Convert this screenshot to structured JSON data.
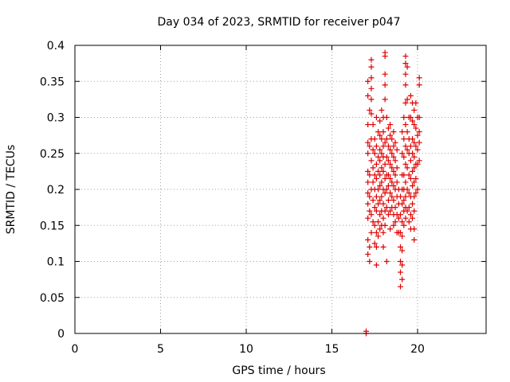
{
  "chart_data": {
    "type": "scatter",
    "title": "Day 034 of 2023, SRMTID for receiver p047",
    "xlabel": "GPS time / hours",
    "ylabel": "SRMTID / TECUs",
    "xlim": [
      0,
      24
    ],
    "ylim": [
      0,
      0.4
    ],
    "x_ticks": [
      0,
      5,
      10,
      15,
      20
    ],
    "x_tick_labels": [
      "0",
      "5",
      "10",
      "15",
      "20"
    ],
    "y_ticks": [
      0,
      0.05,
      0.1,
      0.15,
      0.2,
      0.25,
      0.3,
      0.35,
      0.4
    ],
    "y_tick_labels": [
      "0",
      "0.05",
      "0.1",
      "0.15",
      "0.2",
      "0.25",
      "0.3",
      "0.35",
      "0.4"
    ],
    "grid": true,
    "marker": "+",
    "color": "#e00000",
    "series": [
      {
        "name": "p047",
        "points": [
          [
            17.0,
            0.0
          ],
          [
            17.0,
            0.003
          ],
          [
            17.1,
            0.35
          ],
          [
            17.1,
            0.33
          ],
          [
            17.1,
            0.29
          ],
          [
            17.1,
            0.265
          ],
          [
            17.1,
            0.25
          ],
          [
            17.1,
            0.225
          ],
          [
            17.1,
            0.21
          ],
          [
            17.1,
            0.195
          ],
          [
            17.1,
            0.18
          ],
          [
            17.1,
            0.16
          ],
          [
            17.1,
            0.13
          ],
          [
            17.1,
            0.11
          ],
          [
            17.2,
            0.31
          ],
          [
            17.2,
            0.26
          ],
          [
            17.2,
            0.22
          ],
          [
            17.2,
            0.19
          ],
          [
            17.2,
            0.17
          ],
          [
            17.2,
            0.12
          ],
          [
            17.2,
            0.1
          ],
          [
            17.3,
            0.38
          ],
          [
            17.3,
            0.37
          ],
          [
            17.3,
            0.355
          ],
          [
            17.3,
            0.34
          ],
          [
            17.3,
            0.325
          ],
          [
            17.3,
            0.305
          ],
          [
            17.3,
            0.27
          ],
          [
            17.3,
            0.24
          ],
          [
            17.3,
            0.2
          ],
          [
            17.3,
            0.165
          ],
          [
            17.3,
            0.14
          ],
          [
            17.4,
            0.29
          ],
          [
            17.4,
            0.255
          ],
          [
            17.4,
            0.23
          ],
          [
            17.4,
            0.21
          ],
          [
            17.4,
            0.185
          ],
          [
            17.4,
            0.155
          ],
          [
            17.5,
            0.27
          ],
          [
            17.5,
            0.25
          ],
          [
            17.5,
            0.22
          ],
          [
            17.5,
            0.2
          ],
          [
            17.5,
            0.175
          ],
          [
            17.5,
            0.15
          ],
          [
            17.5,
            0.125
          ],
          [
            17.6,
            0.3
          ],
          [
            17.6,
            0.26
          ],
          [
            17.6,
            0.235
          ],
          [
            17.6,
            0.215
          ],
          [
            17.6,
            0.19
          ],
          [
            17.6,
            0.17
          ],
          [
            17.6,
            0.14
          ],
          [
            17.6,
            0.12
          ],
          [
            17.6,
            0.095
          ],
          [
            17.7,
            0.28
          ],
          [
            17.7,
            0.245
          ],
          [
            17.7,
            0.225
          ],
          [
            17.7,
            0.2
          ],
          [
            17.7,
            0.18
          ],
          [
            17.7,
            0.155
          ],
          [
            17.7,
            0.135
          ],
          [
            17.8,
            0.295
          ],
          [
            17.8,
            0.275
          ],
          [
            17.8,
            0.255
          ],
          [
            17.8,
            0.24
          ],
          [
            17.8,
            0.22
          ],
          [
            17.8,
            0.205
          ],
          [
            17.8,
            0.185
          ],
          [
            17.8,
            0.165
          ],
          [
            17.8,
            0.145
          ],
          [
            17.9,
            0.31
          ],
          [
            17.9,
            0.27
          ],
          [
            17.9,
            0.25
          ],
          [
            17.9,
            0.23
          ],
          [
            17.9,
            0.21
          ],
          [
            17.9,
            0.19
          ],
          [
            17.9,
            0.17
          ],
          [
            17.9,
            0.15
          ],
          [
            18.0,
            0.3
          ],
          [
            18.0,
            0.28
          ],
          [
            18.0,
            0.26
          ],
          [
            18.0,
            0.245
          ],
          [
            18.0,
            0.225
          ],
          [
            18.0,
            0.2
          ],
          [
            18.0,
            0.18
          ],
          [
            18.0,
            0.16
          ],
          [
            18.0,
            0.14
          ],
          [
            18.0,
            0.12
          ],
          [
            18.1,
            0.39
          ],
          [
            18.1,
            0.385
          ],
          [
            18.1,
            0.36
          ],
          [
            18.1,
            0.345
          ],
          [
            18.1,
            0.325
          ],
          [
            18.1,
            0.265
          ],
          [
            18.1,
            0.235
          ],
          [
            18.1,
            0.215
          ],
          [
            18.1,
            0.195
          ],
          [
            18.1,
            0.17
          ],
          [
            18.1,
            0.15
          ],
          [
            18.2,
            0.3
          ],
          [
            18.2,
            0.27
          ],
          [
            18.2,
            0.245
          ],
          [
            18.2,
            0.22
          ],
          [
            18.2,
            0.2
          ],
          [
            18.2,
            0.175
          ],
          [
            18.2,
            0.1
          ],
          [
            18.3,
            0.285
          ],
          [
            18.3,
            0.26
          ],
          [
            18.3,
            0.24
          ],
          [
            18.3,
            0.22
          ],
          [
            18.3,
            0.205
          ],
          [
            18.3,
            0.185
          ],
          [
            18.3,
            0.165
          ],
          [
            18.4,
            0.29
          ],
          [
            18.4,
            0.275
          ],
          [
            18.4,
            0.255
          ],
          [
            18.4,
            0.235
          ],
          [
            18.4,
            0.215
          ],
          [
            18.4,
            0.195
          ],
          [
            18.4,
            0.17
          ],
          [
            18.4,
            0.145
          ],
          [
            18.5,
            0.27
          ],
          [
            18.5,
            0.25
          ],
          [
            18.5,
            0.23
          ],
          [
            18.5,
            0.21
          ],
          [
            18.5,
            0.19
          ],
          [
            18.5,
            0.175
          ],
          [
            18.6,
            0.28
          ],
          [
            18.6,
            0.26
          ],
          [
            18.6,
            0.245
          ],
          [
            18.6,
            0.225
          ],
          [
            18.6,
            0.205
          ],
          [
            18.6,
            0.185
          ],
          [
            18.6,
            0.165
          ],
          [
            18.6,
            0.15
          ],
          [
            18.7,
            0.265
          ],
          [
            18.7,
            0.24
          ],
          [
            18.7,
            0.22
          ],
          [
            18.7,
            0.2
          ],
          [
            18.7,
            0.175
          ],
          [
            18.7,
            0.155
          ],
          [
            18.8,
            0.255
          ],
          [
            18.8,
            0.23
          ],
          [
            18.8,
            0.21
          ],
          [
            18.8,
            0.19
          ],
          [
            18.8,
            0.165
          ],
          [
            18.8,
            0.14
          ],
          [
            18.9,
            0.2
          ],
          [
            18.9,
            0.18
          ],
          [
            18.9,
            0.16
          ],
          [
            18.9,
            0.14
          ],
          [
            19.0,
            0.19
          ],
          [
            19.0,
            0.165
          ],
          [
            19.0,
            0.14
          ],
          [
            19.0,
            0.12
          ],
          [
            19.0,
            0.1
          ],
          [
            19.0,
            0.085
          ],
          [
            19.0,
            0.065
          ],
          [
            19.1,
            0.28
          ],
          [
            19.1,
            0.25
          ],
          [
            19.1,
            0.22
          ],
          [
            19.1,
            0.2
          ],
          [
            19.1,
            0.18
          ],
          [
            19.1,
            0.155
          ],
          [
            19.1,
            0.135
          ],
          [
            19.1,
            0.115
          ],
          [
            19.1,
            0.095
          ],
          [
            19.1,
            0.075
          ],
          [
            19.2,
            0.3
          ],
          [
            19.2,
            0.27
          ],
          [
            19.2,
            0.245
          ],
          [
            19.2,
            0.22
          ],
          [
            19.2,
            0.2
          ],
          [
            19.2,
            0.185
          ],
          [
            19.2,
            0.17
          ],
          [
            19.2,
            0.15
          ],
          [
            19.3,
            0.385
          ],
          [
            19.3,
            0.375
          ],
          [
            19.3,
            0.36
          ],
          [
            19.3,
            0.345
          ],
          [
            19.3,
            0.32
          ],
          [
            19.3,
            0.29
          ],
          [
            19.3,
            0.26
          ],
          [
            19.3,
            0.235
          ],
          [
            19.3,
            0.21
          ],
          [
            19.3,
            0.19
          ],
          [
            19.3,
            0.175
          ],
          [
            19.3,
            0.16
          ],
          [
            19.4,
            0.37
          ],
          [
            19.4,
            0.325
          ],
          [
            19.4,
            0.28
          ],
          [
            19.4,
            0.255
          ],
          [
            19.4,
            0.23
          ],
          [
            19.4,
            0.2
          ],
          [
            19.4,
            0.17
          ],
          [
            19.5,
            0.3
          ],
          [
            19.5,
            0.27
          ],
          [
            19.5,
            0.25
          ],
          [
            19.5,
            0.22
          ],
          [
            19.5,
            0.195
          ],
          [
            19.5,
            0.175
          ],
          [
            19.5,
            0.155
          ],
          [
            19.6,
            0.33
          ],
          [
            19.6,
            0.3
          ],
          [
            19.6,
            0.26
          ],
          [
            19.6,
            0.24
          ],
          [
            19.6,
            0.215
          ],
          [
            19.6,
            0.19
          ],
          [
            19.6,
            0.165
          ],
          [
            19.6,
            0.145
          ],
          [
            19.7,
            0.32
          ],
          [
            19.7,
            0.295
          ],
          [
            19.7,
            0.27
          ],
          [
            19.7,
            0.25
          ],
          [
            19.7,
            0.225
          ],
          [
            19.7,
            0.205
          ],
          [
            19.7,
            0.18
          ],
          [
            19.7,
            0.16
          ],
          [
            19.8,
            0.31
          ],
          [
            19.8,
            0.29
          ],
          [
            19.8,
            0.265
          ],
          [
            19.8,
            0.245
          ],
          [
            19.8,
            0.23
          ],
          [
            19.8,
            0.21
          ],
          [
            19.8,
            0.19
          ],
          [
            19.8,
            0.17
          ],
          [
            19.8,
            0.145
          ],
          [
            19.8,
            0.13
          ],
          [
            19.9,
            0.32
          ],
          [
            19.9,
            0.285
          ],
          [
            19.9,
            0.26
          ],
          [
            19.9,
            0.235
          ],
          [
            19.9,
            0.215
          ],
          [
            19.9,
            0.195
          ],
          [
            20.0,
            0.3
          ],
          [
            20.0,
            0.275
          ],
          [
            20.0,
            0.255
          ],
          [
            20.0,
            0.235
          ],
          [
            20.0,
            0.2
          ],
          [
            20.1,
            0.355
          ],
          [
            20.1,
            0.345
          ],
          [
            20.1,
            0.3
          ],
          [
            20.1,
            0.28
          ],
          [
            20.1,
            0.265
          ],
          [
            20.1,
            0.24
          ]
        ]
      }
    ]
  }
}
